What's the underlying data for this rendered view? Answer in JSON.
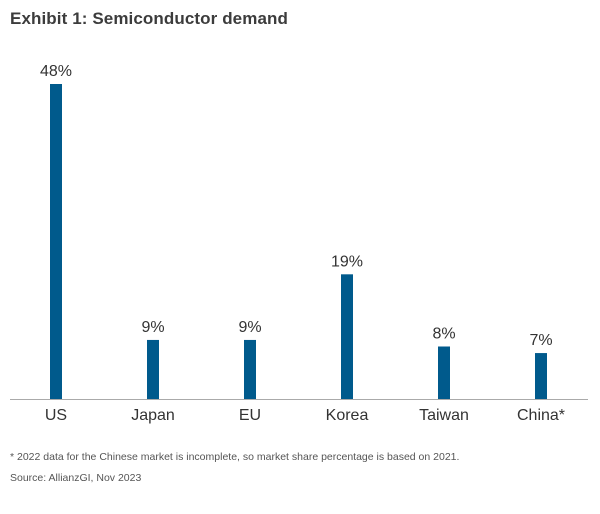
{
  "title": "Exhibit 1: Semiconductor demand",
  "footnote": "* 2022 data for the Chinese market is incomplete, so market share percentage is based on 2021.",
  "source": "Source: AllianzGI, Nov 2023",
  "colors": {
    "bar": "#005a8c",
    "axis": "#aaaaaa"
  },
  "chart_data": {
    "type": "bar",
    "title": "Exhibit 1: Semiconductor demand",
    "categories": [
      "US",
      "Japan",
      "EU",
      "Korea",
      "Taiwan",
      "China*"
    ],
    "values": [
      48,
      9,
      9,
      19,
      8,
      7
    ],
    "value_labels": [
      "48%",
      "9%",
      "9%",
      "19%",
      "8%",
      "7%"
    ],
    "xlabel": "",
    "ylabel": "",
    "ylim": [
      0,
      48
    ],
    "grid": false,
    "legend": "none"
  }
}
